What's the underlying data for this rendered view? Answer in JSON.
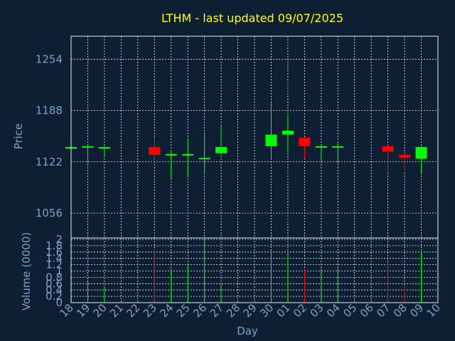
{
  "chart_data": {
    "type": "candlestick",
    "title": "LTHM - last updated 09/07/2025",
    "xlabel": "Day",
    "price_ylabel": "Price",
    "volume_ylabel": "Volume (0000)",
    "price_ylim": [
      1056,
      1310
    ],
    "price_yticks": [
      "1056",
      "1122",
      "1188",
      "1254"
    ],
    "volume_ylim": [
      0,
      2
    ],
    "volume_yticks": [
      "0",
      "0.2",
      "0.4",
      "0.6",
      "0.8",
      "1",
      "1.2",
      "1.4",
      "1.6",
      "1.8",
      "2"
    ],
    "x_tick_labels": [
      "18",
      "19",
      "20",
      "21",
      "22",
      "23",
      "24",
      "25",
      "26",
      "27",
      "28",
      "29",
      "30",
      "01",
      "02",
      "03",
      "04",
      "05",
      "06",
      "07",
      "08",
      "09",
      "10"
    ],
    "colors": {
      "up": "#00ff00",
      "down": "#ff0000",
      "background": "#0f1f33",
      "text": "#7fa0c8",
      "title": "#ffff00",
      "grid": "#e6ecf2"
    },
    "grid": true,
    "candles": [
      {
        "day": "18",
        "open": 1141,
        "high": 1142,
        "low": 1140,
        "close": 1141,
        "volume": 0
      },
      {
        "day": "19",
        "open": 1141,
        "high": 1142,
        "low": 1120,
        "close": 1142,
        "volume": 0.65
      },
      {
        "day": "20",
        "open": 1141,
        "high": 1142,
        "low": 1128,
        "close": 1141,
        "volume": 0.5
      },
      {
        "day": "23",
        "open": 1141,
        "high": 1154,
        "low": 1124,
        "close": 1131,
        "volume": 1.68
      },
      {
        "day": "24",
        "open": 1131,
        "high": 1136,
        "low": 1101,
        "close": 1132,
        "volume": 1.02
      },
      {
        "day": "25",
        "open": 1131,
        "high": 1152,
        "low": 1103,
        "close": 1132,
        "volume": 1.22
      },
      {
        "day": "26",
        "open": 1126,
        "high": 1158,
        "low": 1106,
        "close": 1127,
        "volume": 2.0
      },
      {
        "day": "27",
        "open": 1133,
        "high": 1170,
        "low": 1132,
        "close": 1141,
        "volume": 0.6
      },
      {
        "day": "30",
        "open": 1142,
        "high": 1197,
        "low": 1125,
        "close": 1157,
        "volume": 1.62
      },
      {
        "day": "01",
        "open": 1157,
        "high": 1182,
        "low": 1135,
        "close": 1162,
        "volume": 1.6
      },
      {
        "day": "02",
        "open": 1153,
        "high": 1153,
        "low": 1126,
        "close": 1142,
        "volume": 1.05
      },
      {
        "day": "03",
        "open": 1141,
        "high": 1143,
        "low": 1120,
        "close": 1142,
        "volume": 1.08
      },
      {
        "day": "04",
        "open": 1141,
        "high": 1146,
        "low": 1120,
        "close": 1142,
        "volume": 1.12
      },
      {
        "day": "07",
        "open": 1142,
        "high": 1144,
        "low": 1108,
        "close": 1135,
        "volume": 1.28
      },
      {
        "day": "08",
        "open": 1131,
        "high": 1131,
        "low": 1109,
        "close": 1127,
        "volume": 0.55
      },
      {
        "day": "09",
        "open": 1126,
        "high": 1142,
        "low": 1108,
        "close": 1141,
        "volume": 1.6
      }
    ]
  }
}
